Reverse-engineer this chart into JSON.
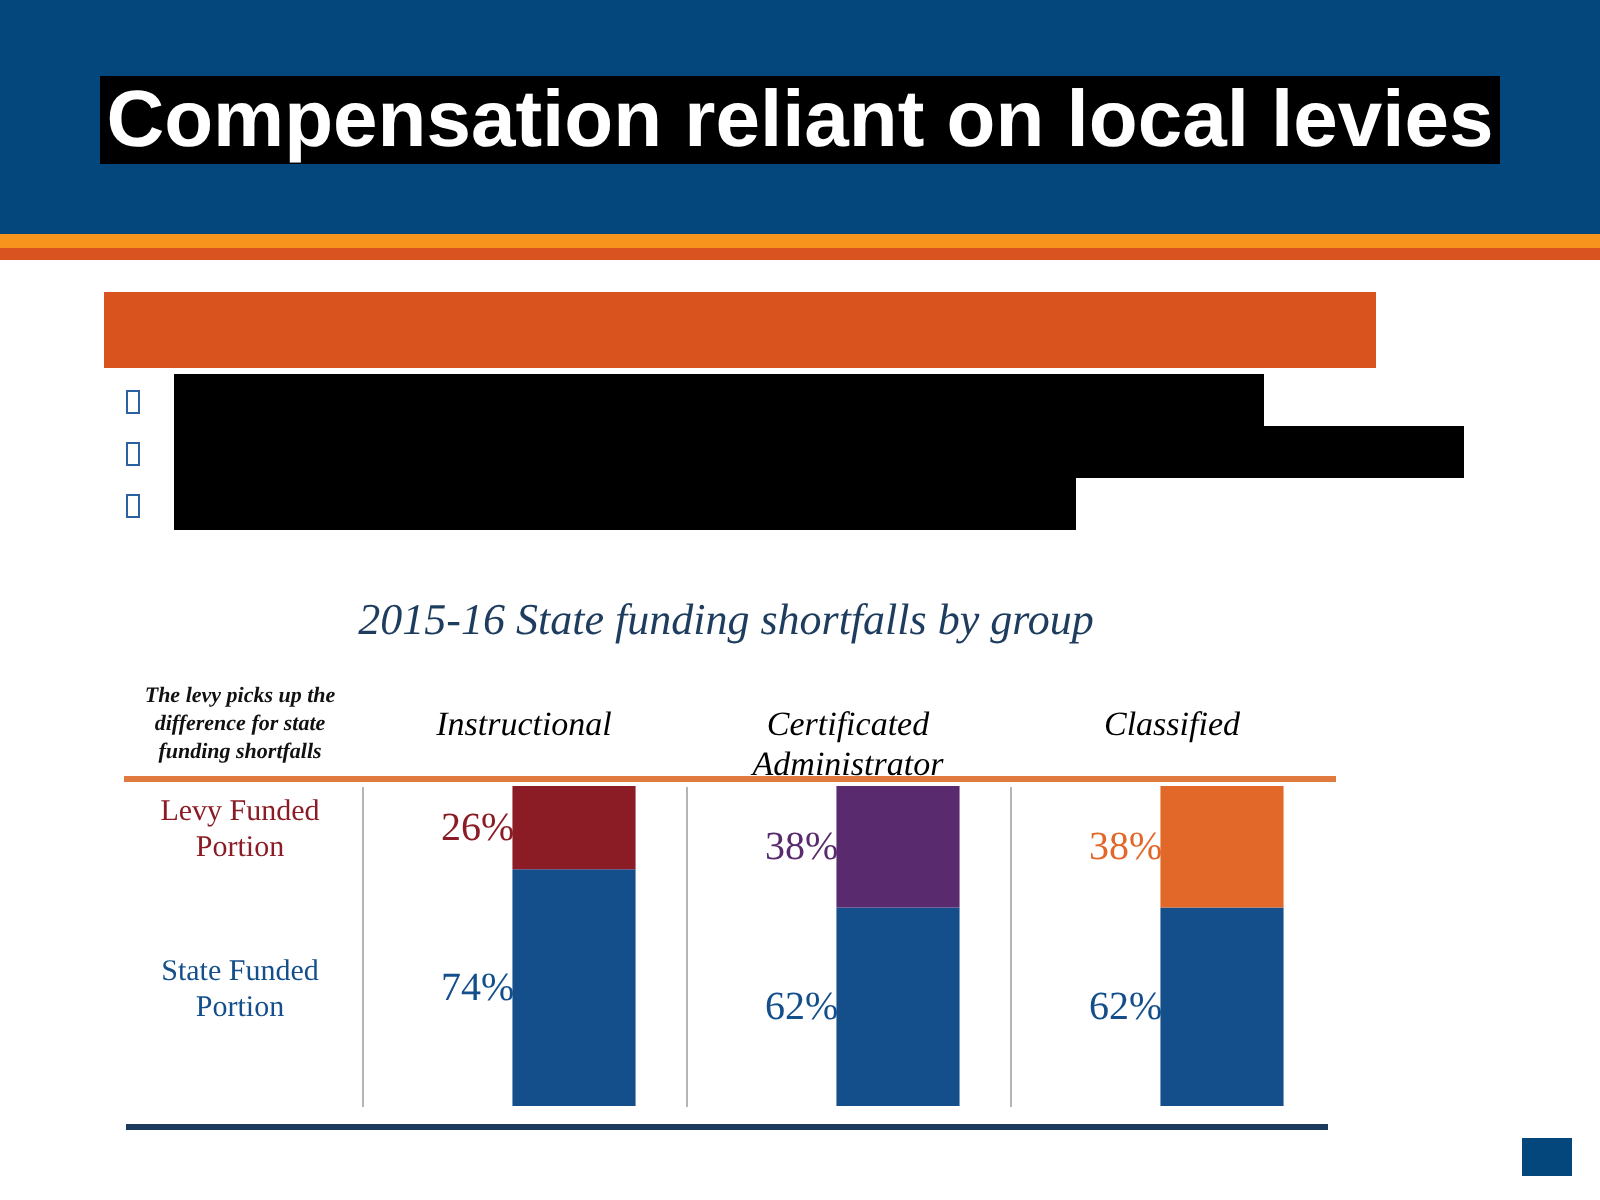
{
  "chart_data": {
    "type": "bar",
    "title": "Compensation reliant on local levies",
    "subtitle": "2015-16 State funding shortfalls by group",
    "categories": [
      "Instructional",
      "Certificated Administrator",
      "Classified"
    ],
    "stacked": true,
    "grid": "x",
    "series": [
      {
        "name": "State Funded Portion",
        "color": "#144f8b",
        "values": [
          74,
          62,
          62
        ],
        "value_labels": [
          "74%",
          "62%",
          "62%"
        ]
      },
      {
        "name": "Levy Funded Portion",
        "colors": [
          "#8b1c26",
          "#5a2a6e",
          "#e2682a"
        ],
        "values": [
          26,
          38,
          38
        ],
        "value_labels": [
          "26%",
          "38%",
          "38%"
        ]
      }
    ],
    "annotations": [
      "The levy picks up the difference for state funding shortfalls"
    ]
  }
}
